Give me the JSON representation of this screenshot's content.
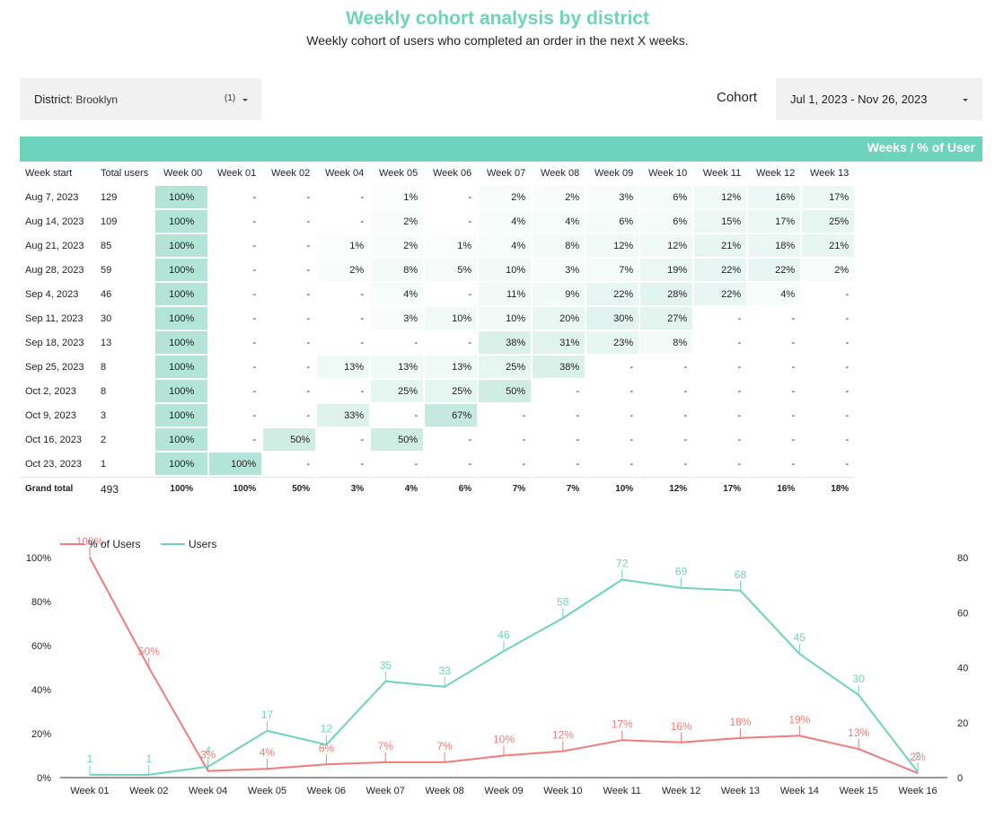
{
  "header": {
    "title": "Weekly cohort analysis by district",
    "subtitle": "Weekly cohort of users who completed an order in the next X weeks."
  },
  "filters": {
    "district_label": "District",
    "district_value": ": Brooklyn",
    "district_count": "(1)",
    "cohort_label": "Cohort",
    "date_range": "Jul 1, 2023 - Nov 26, 2023"
  },
  "colors": {
    "accent": "#6dd3bb",
    "pct_line": "#f07b7b",
    "users_line": "#6dd3bb"
  },
  "table": {
    "group_header": "Weeks / % of User",
    "columns": [
      "Week start",
      "Total users",
      "Week 00",
      "Week 01",
      "Week 02",
      "Week 04",
      "Week 05",
      "Week 06",
      "Week 07",
      "Week 08",
      "Week 09",
      "Week 10",
      "Week 11",
      "Week 12",
      "Week 13"
    ],
    "rows": [
      [
        "Aug 7, 2023",
        "129",
        "100%",
        "-",
        "-",
        "-",
        "1%",
        "-",
        "2%",
        "2%",
        "3%",
        "6%",
        "12%",
        "16%",
        "17%"
      ],
      [
        "Aug 14, 2023",
        "109",
        "100%",
        "-",
        "-",
        "-",
        "2%",
        "-",
        "4%",
        "4%",
        "6%",
        "6%",
        "15%",
        "17%",
        "25%"
      ],
      [
        "Aug 21, 2023",
        "85",
        "100%",
        "-",
        "-",
        "1%",
        "2%",
        "1%",
        "4%",
        "8%",
        "12%",
        "12%",
        "21%",
        "18%",
        "21%"
      ],
      [
        "Aug 28, 2023",
        "59",
        "100%",
        "-",
        "-",
        "2%",
        "8%",
        "5%",
        "10%",
        "3%",
        "7%",
        "19%",
        "22%",
        "22%",
        "2%"
      ],
      [
        "Sep 4, 2023",
        "46",
        "100%",
        "-",
        "-",
        "-",
        "4%",
        "-",
        "11%",
        "9%",
        "22%",
        "28%",
        "22%",
        "4%",
        "-"
      ],
      [
        "Sep 11, 2023",
        "30",
        "100%",
        "-",
        "-",
        "-",
        "3%",
        "10%",
        "10%",
        "20%",
        "30%",
        "27%",
        "-",
        "-",
        "-"
      ],
      [
        "Sep 18, 2023",
        "13",
        "100%",
        "-",
        "-",
        "-",
        "-",
        "-",
        "38%",
        "31%",
        "23%",
        "8%",
        "-",
        "-",
        "-"
      ],
      [
        "Sep 25, 2023",
        "8",
        "100%",
        "-",
        "-",
        "13%",
        "13%",
        "13%",
        "25%",
        "38%",
        "-",
        "-",
        "-",
        "-",
        "-"
      ],
      [
        "Oct 2, 2023",
        "8",
        "100%",
        "-",
        "-",
        "-",
        "25%",
        "25%",
        "50%",
        "-",
        "-",
        "-",
        "-",
        "-",
        "-"
      ],
      [
        "Oct 9, 2023",
        "3",
        "100%",
        "-",
        "-",
        "33%",
        "-",
        "67%",
        "-",
        "-",
        "-",
        "-",
        "-",
        "-",
        "-"
      ],
      [
        "Oct 16, 2023",
        "2",
        "100%",
        "-",
        "50%",
        "-",
        "50%",
        "-",
        "-",
        "-",
        "-",
        "-",
        "-",
        "-",
        "-"
      ],
      [
        "Oct 23, 2023",
        "1",
        "100%",
        "100%",
        "-",
        "-",
        "-",
        "-",
        "-",
        "-",
        "-",
        "-",
        "-",
        "-",
        "-"
      ]
    ],
    "total": [
      "Grand total",
      "493",
      "100%",
      "100%",
      "50%",
      "3%",
      "4%",
      "6%",
      "7%",
      "7%",
      "10%",
      "12%",
      "17%",
      "16%",
      "18%"
    ]
  },
  "chart_data": {
    "type": "line",
    "categories": [
      "Week 01",
      "Week 02",
      "Week 04",
      "Week 05",
      "Week 06",
      "Week 07",
      "Week 08",
      "Week 09",
      "Week 10",
      "Week 11",
      "Week 12",
      "Week 13",
      "Week 14",
      "Week 15",
      "Week 16"
    ],
    "series": [
      {
        "name": "% of Users",
        "axis": "left",
        "values": [
          100,
          50,
          3,
          4,
          6,
          7,
          7,
          10,
          12,
          17,
          16,
          18,
          19,
          13,
          2
        ],
        "labels": [
          "100%",
          "50%",
          "3%",
          "4%",
          "6%",
          "7%",
          "7%",
          "10%",
          "12%",
          "17%",
          "16%",
          "18%",
          "19%",
          "13%",
          "2%"
        ]
      },
      {
        "name": "Users",
        "axis": "right",
        "values": [
          1,
          1,
          4,
          17,
          12,
          35,
          33,
          46,
          58,
          72,
          69,
          68,
          45,
          30,
          2
        ],
        "labels": [
          "1",
          "1",
          "4",
          "17",
          "12",
          "35",
          "33",
          "46",
          "58",
          "72",
          "69",
          "68",
          "45",
          "30",
          "2"
        ]
      }
    ],
    "left_axis": {
      "ticks": [
        "0%",
        "20%",
        "40%",
        "60%",
        "80%",
        "100%"
      ],
      "range": [
        0,
        100
      ]
    },
    "right_axis": {
      "ticks": [
        "0",
        "20",
        "40",
        "60",
        "80"
      ],
      "range": [
        0,
        80
      ]
    },
    "legend": "top-left",
    "grid": false
  }
}
